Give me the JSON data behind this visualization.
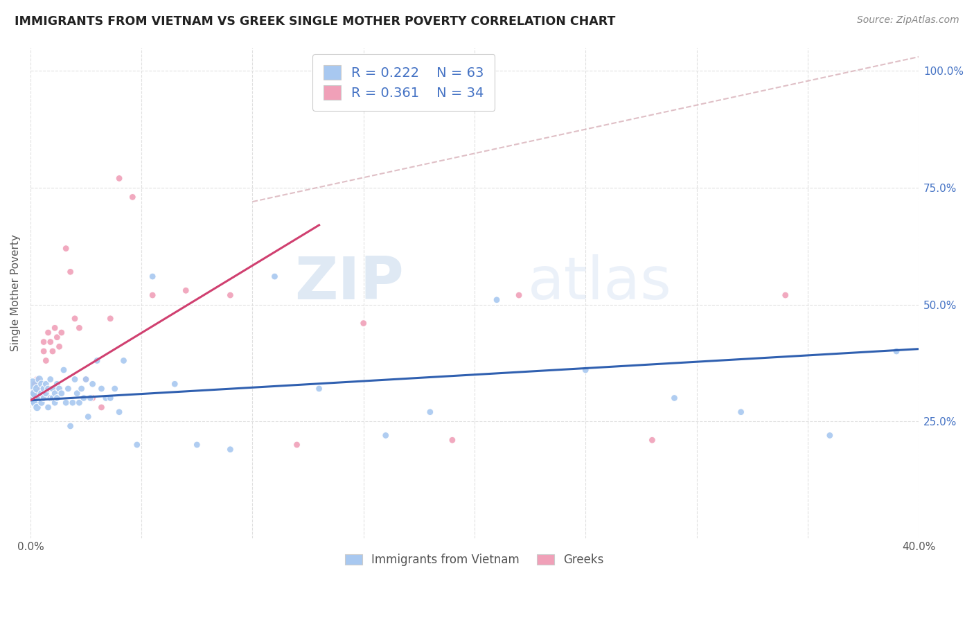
{
  "title": "IMMIGRANTS FROM VIETNAM VS GREEK SINGLE MOTHER POVERTY CORRELATION CHART",
  "source": "Source: ZipAtlas.com",
  "ylabel": "Single Mother Poverty",
  "legend_blue_R": "0.222",
  "legend_blue_N": "63",
  "legend_pink_R": "0.361",
  "legend_pink_N": "34",
  "legend_label_blue": "Immigrants from Vietnam",
  "legend_label_pink": "Greeks",
  "blue_color": "#a8c8f0",
  "pink_color": "#f0a0b8",
  "blue_line_color": "#3060b0",
  "pink_line_color": "#d04070",
  "dashed_line_color": "#d8b0b8",
  "watermark_zip": "ZIP",
  "watermark_atlas": "atlas",
  "xlim": [
    0.0,
    0.4
  ],
  "ylim": [
    0.0,
    1.05
  ],
  "blue_scatter_x": [
    0.001,
    0.001,
    0.002,
    0.002,
    0.003,
    0.003,
    0.004,
    0.004,
    0.005,
    0.005,
    0.005,
    0.006,
    0.006,
    0.007,
    0.007,
    0.008,
    0.008,
    0.009,
    0.009,
    0.01,
    0.01,
    0.011,
    0.011,
    0.012,
    0.012,
    0.013,
    0.014,
    0.015,
    0.016,
    0.017,
    0.018,
    0.019,
    0.02,
    0.021,
    0.022,
    0.023,
    0.024,
    0.025,
    0.026,
    0.027,
    0.028,
    0.03,
    0.032,
    0.034,
    0.036,
    0.038,
    0.04,
    0.042,
    0.048,
    0.055,
    0.065,
    0.075,
    0.09,
    0.11,
    0.13,
    0.16,
    0.18,
    0.21,
    0.25,
    0.29,
    0.32,
    0.36,
    0.39
  ],
  "blue_scatter_y": [
    0.3,
    0.33,
    0.31,
    0.29,
    0.32,
    0.28,
    0.34,
    0.3,
    0.31,
    0.33,
    0.29,
    0.32,
    0.3,
    0.31,
    0.33,
    0.28,
    0.32,
    0.3,
    0.34,
    0.32,
    0.3,
    0.31,
    0.29,
    0.33,
    0.3,
    0.32,
    0.31,
    0.36,
    0.29,
    0.32,
    0.24,
    0.29,
    0.34,
    0.31,
    0.29,
    0.32,
    0.3,
    0.34,
    0.26,
    0.3,
    0.33,
    0.38,
    0.32,
    0.3,
    0.3,
    0.32,
    0.27,
    0.38,
    0.2,
    0.56,
    0.33,
    0.2,
    0.19,
    0.56,
    0.32,
    0.22,
    0.27,
    0.51,
    0.36,
    0.3,
    0.27,
    0.22,
    0.4
  ],
  "blue_scatter_sizes": [
    200,
    150,
    100,
    80,
    80,
    70,
    70,
    60,
    60,
    60,
    55,
    55,
    50,
    50,
    50,
    50,
    50,
    50,
    50,
    50,
    50,
    50,
    50,
    50,
    50,
    50,
    50,
    50,
    50,
    50,
    50,
    50,
    50,
    50,
    50,
    50,
    50,
    50,
    50,
    50,
    50,
    50,
    50,
    50,
    50,
    50,
    50,
    50,
    50,
    50,
    50,
    50,
    50,
    50,
    50,
    50,
    50,
    50,
    50,
    50,
    50,
    50,
    50
  ],
  "pink_scatter_x": [
    0.001,
    0.002,
    0.003,
    0.004,
    0.005,
    0.006,
    0.006,
    0.007,
    0.008,
    0.009,
    0.01,
    0.011,
    0.012,
    0.013,
    0.014,
    0.016,
    0.018,
    0.02,
    0.022,
    0.025,
    0.028,
    0.032,
    0.036,
    0.04,
    0.046,
    0.055,
    0.07,
    0.09,
    0.12,
    0.15,
    0.19,
    0.22,
    0.28,
    0.34
  ],
  "pink_scatter_y": [
    0.31,
    0.33,
    0.34,
    0.32,
    0.3,
    0.4,
    0.42,
    0.38,
    0.44,
    0.42,
    0.4,
    0.45,
    0.43,
    0.41,
    0.44,
    0.62,
    0.57,
    0.47,
    0.45,
    0.34,
    0.3,
    0.28,
    0.47,
    0.77,
    0.73,
    0.52,
    0.53,
    0.52,
    0.2,
    0.46,
    0.21,
    0.52,
    0.21,
    0.52
  ],
  "pink_scatter_sizes": [
    50,
    50,
    50,
    50,
    50,
    50,
    50,
    50,
    50,
    50,
    50,
    50,
    50,
    50,
    50,
    50,
    50,
    50,
    50,
    50,
    50,
    50,
    50,
    50,
    50,
    50,
    50,
    50,
    50,
    50,
    50,
    50,
    50,
    50
  ],
  "blue_line_x0": 0.0,
  "blue_line_y0": 0.295,
  "blue_line_x1": 0.4,
  "blue_line_y1": 0.405,
  "pink_line_x0": 0.0,
  "pink_line_y0": 0.295,
  "pink_line_x1": 0.13,
  "pink_line_y1": 0.67,
  "dash_line_x0": 0.1,
  "dash_line_y0": 0.72,
  "dash_line_x1": 0.4,
  "dash_line_y1": 1.03,
  "background_color": "#ffffff",
  "grid_color": "#e0e0e0",
  "right_tick_color": "#4472c4",
  "title_color": "#222222",
  "source_color": "#888888",
  "ylabel_color": "#555555"
}
